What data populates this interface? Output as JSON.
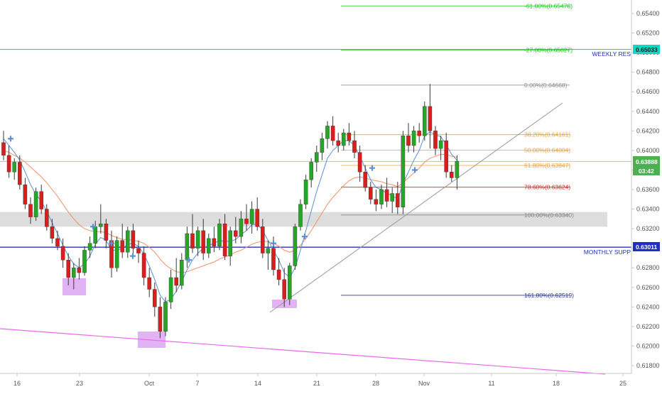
{
  "colors": {
    "up": "#26a626",
    "down": "#d91e1e",
    "wick": "#3a3a3a",
    "price_tag_green": "#4caf50",
    "price_tag_cyan": "#12d6c4",
    "price_tag_blue": "#1f2fc4",
    "monthly_line": "#2432c8",
    "weekly_line": "#12d6c4",
    "fib_61": "#22c422",
    "fib_27": "#22c422",
    "fib_0": "#888888",
    "fib_382": "#f0a030",
    "fib_50": "#f0a030",
    "fib_618": "#f0a030",
    "fib_786": "#e02020",
    "fib_100": "#888888",
    "fib_1618": "#2a3a9a",
    "ma_fast": "#5b8fd6",
    "ma_slow": "#f0906a",
    "trendline": "#999999",
    "pink_line": "#ee66ee",
    "zone_gray": "#dddddd",
    "zone_purple": "#dda6f2",
    "marker_blue": "#5b8fd6"
  },
  "chart_data": {
    "type": "candlestick",
    "ylim": [
      0.617,
      0.656
    ],
    "y_ticks": [
      "0.61800",
      "0.62000",
      "0.62200",
      "0.62400",
      "0.62600",
      "0.62800",
      "0.63000",
      "0.63200",
      "0.63400",
      "0.63600",
      "0.63800",
      "0.64000",
      "0.64200",
      "0.64400",
      "0.64600",
      "0.64800",
      "0.65000",
      "0.65200",
      "0.65400"
    ],
    "x_labels": [
      "16",
      "23",
      "Oct",
      "7",
      "14",
      "21",
      "28",
      "Nov",
      "11",
      "18",
      "25"
    ],
    "price_tags": {
      "weekly": "0.65033",
      "current_price": "0.63888",
      "countdown": "03:42",
      "monthly": "0.63011"
    },
    "level_labels": {
      "weekly": "WEEKLY RES",
      "monthly": "MONTHLY SUPP"
    },
    "fib_levels": [
      {
        "label": "-61.00%(0.65478)",
        "value": 0.65478,
        "color_key": "fib_61"
      },
      {
        "label": "-27.00%(0.65027)",
        "value": 0.65027,
        "color_key": "fib_27"
      },
      {
        "label": "0.00%(0.64668)",
        "value": 0.64668,
        "color_key": "fib_0"
      },
      {
        "label": "38.20%(0.64161)",
        "value": 0.64161,
        "color_key": "fib_382"
      },
      {
        "label": "50.00%(0.64004)",
        "value": 0.64004,
        "color_key": "fib_50"
      },
      {
        "label": "61.80%(0.63847)",
        "value": 0.63847,
        "color_key": "fib_618"
      },
      {
        "label": "78.60%(0.63624)",
        "value": 0.63624,
        "color_key": "fib_786"
      },
      {
        "label": "100.00%(0.63340)",
        "value": 0.6334,
        "color_key": "fib_100"
      },
      {
        "label": "161.80%(0.62519)",
        "value": 0.62519,
        "color_key": "fib_1618"
      }
    ],
    "candles": [
      [
        0.6408,
        0.642,
        0.639,
        0.6395
      ],
      [
        0.6395,
        0.6405,
        0.6372,
        0.6378
      ],
      [
        0.6378,
        0.6392,
        0.637,
        0.6388
      ],
      [
        0.6388,
        0.6395,
        0.636,
        0.6365
      ],
      [
        0.6365,
        0.6372,
        0.634,
        0.6345
      ],
      [
        0.6345,
        0.6352,
        0.6325,
        0.6332
      ],
      [
        0.6332,
        0.6362,
        0.6328,
        0.6358
      ],
      [
        0.6358,
        0.6365,
        0.6335,
        0.634
      ],
      [
        0.634,
        0.6345,
        0.6318,
        0.6322
      ],
      [
        0.6322,
        0.633,
        0.6305,
        0.631
      ],
      [
        0.631,
        0.6318,
        0.6298,
        0.6302
      ],
      [
        0.6302,
        0.631,
        0.628,
        0.6288
      ],
      [
        0.6288,
        0.6295,
        0.6262,
        0.627
      ],
      [
        0.627,
        0.6285,
        0.6258,
        0.628
      ],
      [
        0.628,
        0.629,
        0.6268,
        0.6275
      ],
      [
        0.6275,
        0.6302,
        0.6272,
        0.6298
      ],
      [
        0.6298,
        0.6312,
        0.629,
        0.6305
      ],
      [
        0.6305,
        0.6328,
        0.63,
        0.6322
      ],
      [
        0.6322,
        0.6345,
        0.6315,
        0.6325
      ],
      [
        0.6325,
        0.633,
        0.63,
        0.6308
      ],
      [
        0.6308,
        0.6318,
        0.627,
        0.628
      ],
      [
        0.628,
        0.6312,
        0.6276,
        0.6308
      ],
      [
        0.6308,
        0.6325,
        0.629,
        0.6296
      ],
      [
        0.6296,
        0.6322,
        0.629,
        0.6318
      ],
      [
        0.6318,
        0.6325,
        0.6292,
        0.63
      ],
      [
        0.63,
        0.6308,
        0.6285,
        0.6295
      ],
      [
        0.6295,
        0.6302,
        0.6262,
        0.627
      ],
      [
        0.627,
        0.628,
        0.625,
        0.6258
      ],
      [
        0.6258,
        0.6265,
        0.623,
        0.624
      ],
      [
        0.624,
        0.625,
        0.6208,
        0.6215
      ],
      [
        0.6215,
        0.625,
        0.621,
        0.6245
      ],
      [
        0.6245,
        0.6278,
        0.6238,
        0.627
      ],
      [
        0.627,
        0.629,
        0.6255,
        0.6262
      ],
      [
        0.6262,
        0.6295,
        0.6258,
        0.6288
      ],
      [
        0.6288,
        0.6322,
        0.628,
        0.6315
      ],
      [
        0.6315,
        0.6335,
        0.6295,
        0.63
      ],
      [
        0.63,
        0.6322,
        0.6292,
        0.6318
      ],
      [
        0.6318,
        0.633,
        0.6288,
        0.6295
      ],
      [
        0.6295,
        0.6315,
        0.629,
        0.631
      ],
      [
        0.631,
        0.6322,
        0.6296,
        0.6302
      ],
      [
        0.6302,
        0.633,
        0.6298,
        0.6325
      ],
      [
        0.6325,
        0.6335,
        0.6288,
        0.6292
      ],
      [
        0.6292,
        0.6322,
        0.6282,
        0.6318
      ],
      [
        0.6318,
        0.6332,
        0.6305,
        0.6312
      ],
      [
        0.6312,
        0.6338,
        0.6305,
        0.633
      ],
      [
        0.633,
        0.6345,
        0.6318,
        0.6325
      ],
      [
        0.6325,
        0.6348,
        0.6315,
        0.634
      ],
      [
        0.634,
        0.6352,
        0.6318,
        0.6322
      ],
      [
        0.6322,
        0.633,
        0.629,
        0.6295
      ],
      [
        0.6295,
        0.6308,
        0.6278,
        0.63
      ],
      [
        0.63,
        0.6312,
        0.6272,
        0.6278
      ],
      [
        0.6278,
        0.629,
        0.6262,
        0.6268
      ],
      [
        0.6268,
        0.628,
        0.624,
        0.6248
      ],
      [
        0.6248,
        0.6285,
        0.6242,
        0.6282
      ],
      [
        0.6282,
        0.6325,
        0.6278,
        0.6322
      ],
      [
        0.6322,
        0.635,
        0.6318,
        0.6345
      ],
      [
        0.6345,
        0.6375,
        0.634,
        0.637
      ],
      [
        0.637,
        0.6392,
        0.6362,
        0.6388
      ],
      [
        0.6388,
        0.6405,
        0.6378,
        0.6398
      ],
      [
        0.6398,
        0.6418,
        0.639,
        0.6412
      ],
      [
        0.6412,
        0.643,
        0.6402,
        0.6425
      ],
      [
        0.6425,
        0.6435,
        0.6405,
        0.641
      ],
      [
        0.641,
        0.6418,
        0.6398,
        0.6405
      ],
      [
        0.6405,
        0.6422,
        0.64,
        0.6418
      ],
      [
        0.6418,
        0.6428,
        0.6405,
        0.641
      ],
      [
        0.641,
        0.642,
        0.6392,
        0.6398
      ],
      [
        0.6398,
        0.6405,
        0.6368,
        0.6378
      ],
      [
        0.6378,
        0.6385,
        0.6358,
        0.6362
      ],
      [
        0.6362,
        0.6368,
        0.6345,
        0.635
      ],
      [
        0.635,
        0.636,
        0.6338,
        0.6345
      ],
      [
        0.6345,
        0.6365,
        0.634,
        0.636
      ],
      [
        0.636,
        0.6372,
        0.6342,
        0.6348
      ],
      [
        0.6348,
        0.6362,
        0.6336,
        0.6356
      ],
      [
        0.6356,
        0.6368,
        0.6335,
        0.6342
      ],
      [
        0.6342,
        0.642,
        0.6335,
        0.6415
      ],
      [
        0.6415,
        0.6428,
        0.6398,
        0.6405
      ],
      [
        0.6405,
        0.6425,
        0.6398,
        0.642
      ],
      [
        0.642,
        0.6428,
        0.6408,
        0.6415
      ],
      [
        0.6415,
        0.645,
        0.641,
        0.6445
      ],
      [
        0.6445,
        0.6468,
        0.6402,
        0.642
      ],
      [
        0.642,
        0.6425,
        0.6395,
        0.6402
      ],
      [
        0.6402,
        0.6415,
        0.639,
        0.641
      ],
      [
        0.641,
        0.6418,
        0.6372,
        0.6378
      ],
      [
        0.6378,
        0.6385,
        0.6368,
        0.6372
      ],
      [
        0.6372,
        0.6395,
        0.636,
        0.6389
      ]
    ],
    "ma_fast": [
      0.6412,
      0.6405,
      0.6398,
      0.639,
      0.6378,
      0.6365,
      0.6355,
      0.6348,
      0.6338,
      0.6326,
      0.6315,
      0.6303,
      0.6292,
      0.6284,
      0.628,
      0.6284,
      0.6292,
      0.6304,
      0.6311,
      0.6308,
      0.6298,
      0.6298,
      0.63,
      0.6304,
      0.6305,
      0.6302,
      0.6294,
      0.6282,
      0.6268,
      0.6252,
      0.6245,
      0.6248,
      0.6256,
      0.6266,
      0.6278,
      0.6288,
      0.6295,
      0.63,
      0.6303,
      0.6305,
      0.6308,
      0.6307,
      0.6307,
      0.6309,
      0.6314,
      0.6318,
      0.6324,
      0.6325,
      0.6318,
      0.6308,
      0.6298,
      0.6288,
      0.6275,
      0.627,
      0.628,
      0.6298,
      0.6318,
      0.6338,
      0.6358,
      0.6375,
      0.6392,
      0.64,
      0.6405,
      0.641,
      0.641,
      0.6405,
      0.6394,
      0.6382,
      0.637,
      0.6362,
      0.636,
      0.6356,
      0.6354,
      0.635,
      0.6366,
      0.6378,
      0.639,
      0.64,
      0.6415,
      0.6419,
      0.6416,
      0.6414,
      0.6406,
      0.6396,
      0.639
    ],
    "ma_slow": [
      0.64,
      0.6398,
      0.6395,
      0.6392,
      0.6388,
      0.6383,
      0.6378,
      0.6373,
      0.6367,
      0.636,
      0.6353,
      0.6345,
      0.6337,
      0.633,
      0.6324,
      0.632,
      0.6318,
      0.6317,
      0.6317,
      0.6316,
      0.6313,
      0.6311,
      0.6309,
      0.6309,
      0.6308,
      0.6307,
      0.6305,
      0.6301,
      0.6296,
      0.6289,
      0.6283,
      0.6279,
      0.6276,
      0.6275,
      0.6276,
      0.6278,
      0.628,
      0.6282,
      0.6284,
      0.6286,
      0.6289,
      0.6291,
      0.6293,
      0.6296,
      0.6298,
      0.6301,
      0.6304,
      0.6306,
      0.6307,
      0.6307,
      0.6305,
      0.6302,
      0.6298,
      0.6296,
      0.6298,
      0.6303,
      0.631,
      0.6318,
      0.6327,
      0.6336,
      0.6345,
      0.6352,
      0.6358,
      0.6364,
      0.6369,
      0.6372,
      0.6373,
      0.6372,
      0.637,
      0.6369,
      0.6368,
      0.6366,
      0.6365,
      0.6363,
      0.6367,
      0.6372,
      0.6377,
      0.6382,
      0.6388,
      0.6392,
      0.6394,
      0.6396,
      0.6396,
      0.6394,
      0.6393
    ]
  }
}
